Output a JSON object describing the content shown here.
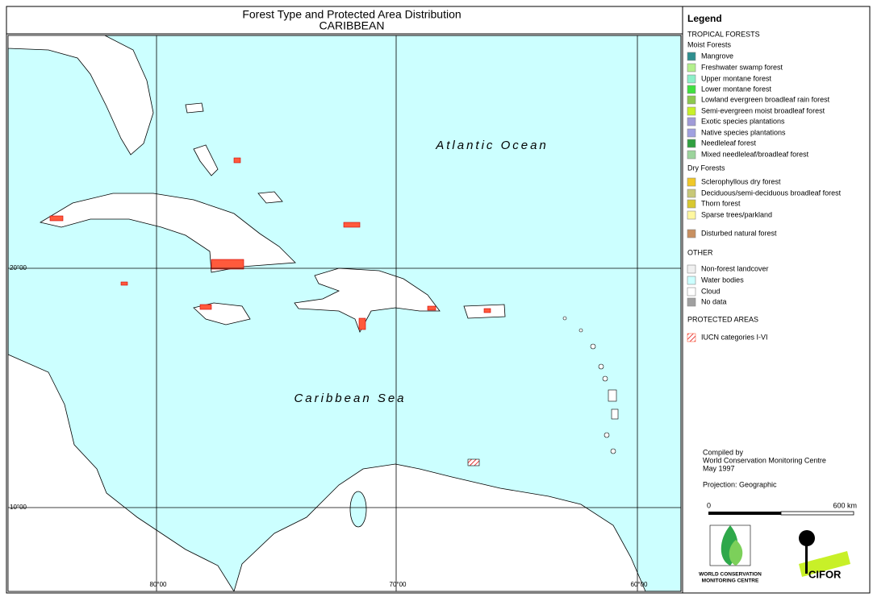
{
  "header": {
    "title": "Forest Type and Protected Area Distribution",
    "subtitle": "CARIBBEAN"
  },
  "map": {
    "ocean_labels": [
      "Atlantic Ocean",
      "Caribbean Sea"
    ],
    "lat_labels": [
      "20°00",
      "10°00"
    ],
    "lon_labels": [
      "80°00",
      "70°00",
      "60°00"
    ]
  },
  "legend": {
    "title": "Legend",
    "rows": [
      {
        "text": "TROPICAL FORESTS"
      },
      {
        "text": "Moist Forests"
      },
      {
        "text": "Mangrove",
        "color": "#2f8f8f"
      },
      {
        "text": "Freshwater swamp forest",
        "color": "#b3f08c"
      },
      {
        "text": "Upper montane forest",
        "color": "#8cf0c8"
      },
      {
        "text": "Lower montane forest",
        "color": "#40e040"
      },
      {
        "text": "Lowland evergreen broadleaf rain forest",
        "color": "#8cc850"
      },
      {
        "text": "Semi-evergreen moist broadleaf forest",
        "color": "#c8f028"
      },
      {
        "text": "Exotic species plantations",
        "color": "#a09bd8"
      },
      {
        "text": "Native species plantations",
        "color": "#a0a0e0"
      },
      {
        "text": "Needleleaf forest",
        "color": "#30a040"
      },
      {
        "text": "Mixed needleleaf/broadleaf forest",
        "color": "#9cd49c"
      },
      {
        "text": "Dry Forests"
      },
      {
        "text": "Sclerophyllous dry forest",
        "color": "#f0c828"
      },
      {
        "text": "Deciduous/semi-deciduous broadleaf forest",
        "color": "#c8c878"
      },
      {
        "text": "Thorn forest",
        "color": "#d8c830"
      },
      {
        "text": "Sparse trees/parkland",
        "color": "#fff8a0"
      },
      {
        "text": "Disturbed natural forest",
        "color": "#c89060"
      },
      {
        "text": "OTHER"
      },
      {
        "text": "Non-forest landcover",
        "color": "#f0f0f0"
      },
      {
        "text": "Water bodies",
        "color": "#ccffff"
      },
      {
        "text": "Cloud",
        "color": "#ffffff"
      },
      {
        "text": "No data",
        "color": "#a0a0a0"
      },
      {
        "text": "PROTECTED AREAS"
      },
      {
        "text": "IUCN categories I-VI",
        "color": "#ff6040"
      }
    ]
  },
  "credits": {
    "lines": [
      "Compiled by",
      "World Conservation Monitoring Centre",
      "May 1997"
    ],
    "projection": "Projection: Geographic"
  },
  "scale": {
    "start": "0",
    "end": "600 km"
  },
  "logos": {
    "wcmc": [
      "WORLD CONSERVATION",
      "MONITORING CENTRE"
    ],
    "cifor": "CIFOR"
  }
}
